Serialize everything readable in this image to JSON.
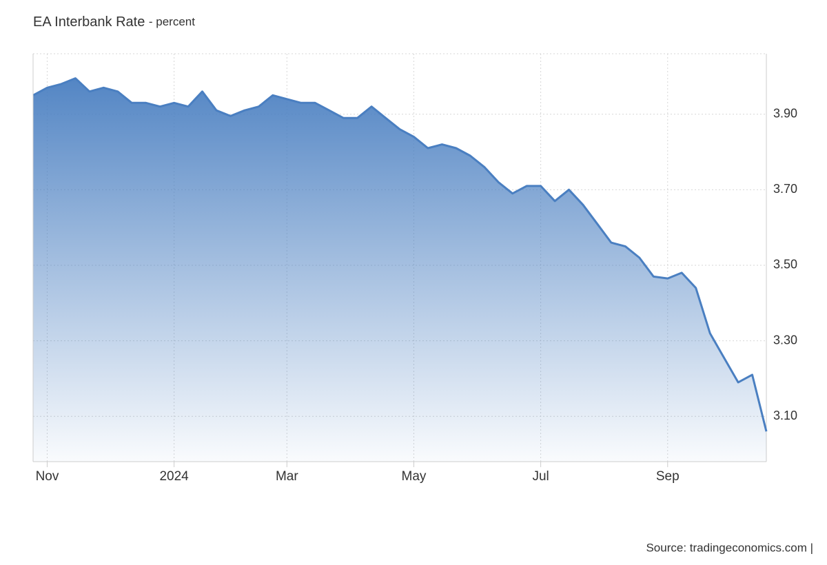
{
  "chart_data": {
    "type": "area",
    "title": "EA Interbank Rate",
    "subtitle": "- percent",
    "source": "Source: tradingeconomics.com |",
    "color": "#4a7fc1",
    "categories": [
      null,
      "Nov",
      null,
      null,
      null,
      null,
      null,
      null,
      null,
      null,
      "2024",
      null,
      null,
      null,
      null,
      null,
      null,
      null,
      "Mar",
      null,
      null,
      null,
      null,
      null,
      null,
      null,
      null,
      "May",
      null,
      null,
      null,
      null,
      null,
      null,
      null,
      null,
      "Jul",
      null,
      null,
      null,
      null,
      null,
      null,
      null,
      null,
      "Sep",
      null,
      null,
      null,
      null,
      null,
      null,
      null
    ],
    "values": [
      3.95,
      3.97,
      3.98,
      3.995,
      3.96,
      3.97,
      3.96,
      3.93,
      3.93,
      3.92,
      3.93,
      3.92,
      3.96,
      3.91,
      3.895,
      3.91,
      3.92,
      3.95,
      3.94,
      3.93,
      3.93,
      3.91,
      3.89,
      3.89,
      3.92,
      3.89,
      3.86,
      3.84,
      3.81,
      3.82,
      3.81,
      3.79,
      3.76,
      3.72,
      3.69,
      3.71,
      3.71,
      3.67,
      3.7,
      3.66,
      3.61,
      3.56,
      3.55,
      3.52,
      3.47,
      3.465,
      3.48,
      3.44,
      3.32,
      3.255,
      3.19,
      3.21,
      3.06
    ],
    "ylim": [
      2.98,
      4.06
    ],
    "yticks": [
      {
        "value": 3.1,
        "label": "3.10"
      },
      {
        "value": 3.3,
        "label": "3.30"
      },
      {
        "value": 3.5,
        "label": "3.50"
      },
      {
        "value": 3.7,
        "label": "3.70"
      },
      {
        "value": 3.9,
        "label": "3.90"
      }
    ],
    "grid": true
  }
}
